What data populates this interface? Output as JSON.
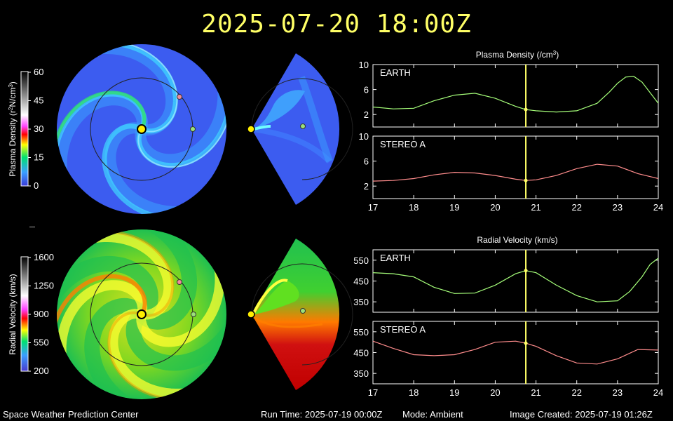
{
  "timestamp": "2025-07-20 18:00Z",
  "footer": {
    "org": "Space Weather Prediction Center",
    "run_time": "Run Time: 2025-07-19 00:00Z",
    "mode": "Mode: Ambient",
    "created": "Image Created: 2025-07-19 01:26Z"
  },
  "colorbars": {
    "density": {
      "label_prefix": "Plasma Density (r",
      "label_sup1": "2",
      "label_mid": "N/cm",
      "label_sup2": "3",
      "label_suffix": ")",
      "ticks": [
        "60",
        "45",
        "30",
        "15",
        "0"
      ]
    },
    "velocity": {
      "label": "Radial Velocity (km/s)",
      "ticks": [
        "1600",
        "1250",
        "900",
        "550",
        "200"
      ]
    }
  },
  "colors": {
    "earth_line": "#a6ff7a",
    "stereo_line": "#ff8c8c",
    "marker_line": "#ffff66",
    "sun": "#ffee00",
    "earth_dot": "#9be07a",
    "stereo_dot": "#f08c9a"
  },
  "chart_data": [
    {
      "type": "line",
      "title_prefix": "Plasma Density (/cm",
      "title_sup": "3",
      "title_suffix": ")",
      "x_ticks": [
        "17",
        "18",
        "19",
        "20",
        "21",
        "22",
        "23",
        "24"
      ],
      "xlim": [
        17,
        24
      ],
      "current_x": 20.75,
      "panels": [
        {
          "label": "EARTH",
          "ylim": [
            0,
            10
          ],
          "y_ticks": [
            2,
            6,
            10
          ],
          "x": [
            17,
            17.5,
            18,
            18.5,
            19,
            19.5,
            20,
            20.5,
            20.75,
            21,
            21.5,
            22,
            22.5,
            22.8,
            23,
            23.2,
            23.4,
            23.6,
            23.8,
            24
          ],
          "y": [
            3.2,
            2.9,
            3.0,
            4.2,
            5.1,
            5.4,
            4.6,
            3.3,
            2.8,
            2.6,
            2.4,
            2.6,
            3.8,
            5.6,
            7.0,
            8.0,
            8.1,
            7.2,
            5.5,
            3.8
          ]
        },
        {
          "label": "STEREO A",
          "ylim": [
            0,
            10
          ],
          "y_ticks": [
            2,
            6,
            10
          ],
          "x": [
            17,
            17.5,
            18,
            18.5,
            19,
            19.5,
            20,
            20.5,
            20.75,
            21,
            21.5,
            22,
            22.5,
            23,
            23.5,
            24
          ],
          "y": [
            2.8,
            2.9,
            3.2,
            3.8,
            4.2,
            4.1,
            3.7,
            3.1,
            2.9,
            3.0,
            3.7,
            4.8,
            5.5,
            5.2,
            4.0,
            3.2
          ]
        }
      ]
    },
    {
      "type": "line",
      "title": "Radial Velocity (km/s)",
      "x_ticks": [
        "17",
        "18",
        "19",
        "20",
        "21",
        "22",
        "23",
        "24"
      ],
      "xlim": [
        17,
        24
      ],
      "current_x": 20.75,
      "panels": [
        {
          "label": "EARTH",
          "ylim": [
            300,
            600
          ],
          "y_ticks": [
            350,
            450,
            550
          ],
          "x": [
            17,
            17.5,
            18,
            18.5,
            19,
            19.5,
            20,
            20.5,
            20.75,
            21,
            21.5,
            22,
            22.5,
            23,
            23.3,
            23.6,
            23.8,
            24
          ],
          "y": [
            490,
            485,
            470,
            420,
            390,
            392,
            430,
            485,
            500,
            490,
            430,
            380,
            350,
            355,
            400,
            470,
            530,
            560
          ]
        },
        {
          "label": "STEREO A",
          "ylim": [
            300,
            600
          ],
          "y_ticks": [
            350,
            450,
            550
          ],
          "x": [
            17,
            17.5,
            18,
            18.5,
            19,
            19.5,
            20,
            20.5,
            20.75,
            21,
            21.5,
            22,
            22.5,
            23,
            23.5,
            24
          ],
          "y": [
            505,
            470,
            440,
            435,
            440,
            465,
            500,
            505,
            495,
            480,
            435,
            400,
            395,
            420,
            465,
            462
          ]
        }
      ]
    }
  ]
}
